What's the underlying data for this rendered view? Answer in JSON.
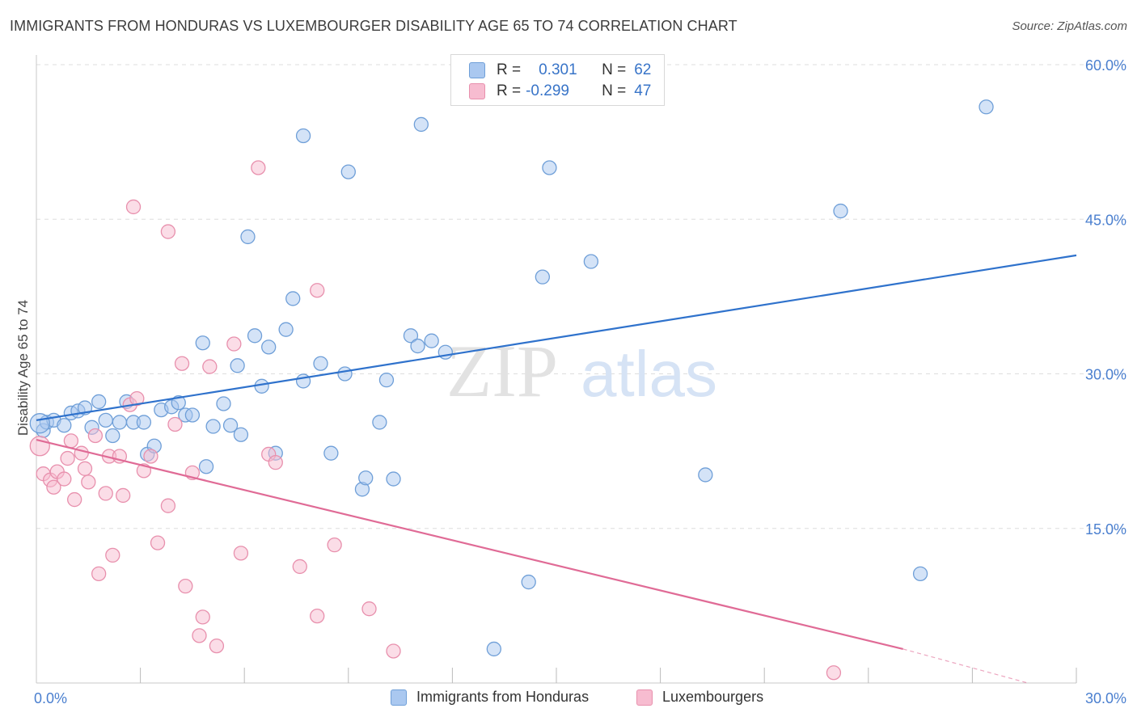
{
  "title": "IMMIGRANTS FROM HONDURAS VS LUXEMBOURGER DISABILITY AGE 65 TO 74 CORRELATION CHART",
  "source": "Source: ZipAtlas.com",
  "watermark": {
    "zip": "ZIP",
    "atlas": "atlas"
  },
  "legend_top": [
    {
      "r_label": "R =",
      "r_value": "0.301",
      "n_label": "N =",
      "n_value": "62"
    },
    {
      "r_label": "R =",
      "r_value": "-0.299",
      "n_label": "N =",
      "n_value": "47"
    }
  ],
  "legend_bottom": [
    "Immigrants from Honduras",
    "Luxembourgers"
  ],
  "colors": {
    "blue_fill": "#aac8f0",
    "blue_stroke": "#6f9fd8",
    "blue_line": "#2f72cc",
    "pink_fill": "#f7bcd0",
    "pink_stroke": "#e890ad",
    "pink_line": "#e06b96",
    "tick": "#4a7fcf",
    "grid": "#dddddd"
  },
  "chart_data": {
    "type": "scatter",
    "title": "IMMIGRANTS FROM HONDURAS VS LUXEMBOURGER DISABILITY AGE 65 TO 74 CORRELATION CHART",
    "xlabel": "",
    "ylabel": "Disability Age 65 to 74",
    "xlim": [
      0,
      30
    ],
    "ylim": [
      0,
      60
    ],
    "x_ticks": [
      "0.0%",
      "30.0%"
    ],
    "y_ticks": [
      "15.0%",
      "30.0%",
      "45.0%",
      "60.0%"
    ],
    "y_tick_values": [
      15,
      30,
      45,
      60
    ],
    "grid": true,
    "legend": "top-center",
    "series": [
      {
        "name": "Immigrants from Honduras",
        "points": [
          [
            0.2,
            24.5
          ],
          [
            0.3,
            25.3
          ],
          [
            0.5,
            25.5
          ],
          [
            0.8,
            25.0
          ],
          [
            1.0,
            26.2
          ],
          [
            1.2,
            26.4
          ],
          [
            1.4,
            26.7
          ],
          [
            1.6,
            24.8
          ],
          [
            1.8,
            27.3
          ],
          [
            2.0,
            25.5
          ],
          [
            2.2,
            24.0
          ],
          [
            2.4,
            25.3
          ],
          [
            2.6,
            27.3
          ],
          [
            2.8,
            25.3
          ],
          [
            3.1,
            25.3
          ],
          [
            3.2,
            22.2
          ],
          [
            3.4,
            23.0
          ],
          [
            3.6,
            26.5
          ],
          [
            3.9,
            26.8
          ],
          [
            4.1,
            27.2
          ],
          [
            4.3,
            26.0
          ],
          [
            4.5,
            26.0
          ],
          [
            4.8,
            33.0
          ],
          [
            4.9,
            21.0
          ],
          [
            5.1,
            24.9
          ],
          [
            5.4,
            27.1
          ],
          [
            5.6,
            25.0
          ],
          [
            5.8,
            30.8
          ],
          [
            5.9,
            24.1
          ],
          [
            6.1,
            43.3
          ],
          [
            6.3,
            33.7
          ],
          [
            6.5,
            28.8
          ],
          [
            6.7,
            32.6
          ],
          [
            6.9,
            22.3
          ],
          [
            7.2,
            34.3
          ],
          [
            7.4,
            37.3
          ],
          [
            7.7,
            29.3
          ],
          [
            7.7,
            53.1
          ],
          [
            8.2,
            31.0
          ],
          [
            8.5,
            22.3
          ],
          [
            8.9,
            30.0
          ],
          [
            9.0,
            49.6
          ],
          [
            9.4,
            18.8
          ],
          [
            9.5,
            19.9
          ],
          [
            9.9,
            25.3
          ],
          [
            10.1,
            29.4
          ],
          [
            10.3,
            19.8
          ],
          [
            10.8,
            33.7
          ],
          [
            11.0,
            32.7
          ],
          [
            11.1,
            54.2
          ],
          [
            11.4,
            33.2
          ],
          [
            11.8,
            32.1
          ],
          [
            13.2,
            3.3
          ],
          [
            14.2,
            9.8
          ],
          [
            14.6,
            39.4
          ],
          [
            14.8,
            50.0
          ],
          [
            16.0,
            40.9
          ],
          [
            19.3,
            20.2
          ],
          [
            23.2,
            45.8
          ],
          [
            25.5,
            10.6
          ],
          [
            27.4,
            55.9
          ],
          [
            0.1,
            25.2
          ]
        ]
      },
      {
        "name": "Luxembourgers",
        "points": [
          [
            0.1,
            23.0
          ],
          [
            0.2,
            20.3
          ],
          [
            0.4,
            19.7
          ],
          [
            0.5,
            19.0
          ],
          [
            0.6,
            20.5
          ],
          [
            0.8,
            19.8
          ],
          [
            0.9,
            21.8
          ],
          [
            1.0,
            23.5
          ],
          [
            1.1,
            17.8
          ],
          [
            1.3,
            22.3
          ],
          [
            1.4,
            20.8
          ],
          [
            1.5,
            19.5
          ],
          [
            1.7,
            24.0
          ],
          [
            1.8,
            10.6
          ],
          [
            2.0,
            18.4
          ],
          [
            2.1,
            22.0
          ],
          [
            2.2,
            12.4
          ],
          [
            2.4,
            22.0
          ],
          [
            2.5,
            18.2
          ],
          [
            2.7,
            27.0
          ],
          [
            2.9,
            27.6
          ],
          [
            3.1,
            20.6
          ],
          [
            3.3,
            22.0
          ],
          [
            3.5,
            13.6
          ],
          [
            3.8,
            17.2
          ],
          [
            3.8,
            43.8
          ],
          [
            4.0,
            25.1
          ],
          [
            4.2,
            31.0
          ],
          [
            4.3,
            9.4
          ],
          [
            4.5,
            20.4
          ],
          [
            4.7,
            4.6
          ],
          [
            4.8,
            6.4
          ],
          [
            5.0,
            30.7
          ],
          [
            5.2,
            3.6
          ],
          [
            5.7,
            32.9
          ],
          [
            5.9,
            12.6
          ],
          [
            6.4,
            50.0
          ],
          [
            6.7,
            22.2
          ],
          [
            6.9,
            21.4
          ],
          [
            7.6,
            11.3
          ],
          [
            8.1,
            38.1
          ],
          [
            8.1,
            6.5
          ],
          [
            8.6,
            13.4
          ],
          [
            9.6,
            7.2
          ],
          [
            10.3,
            3.1
          ],
          [
            23.0,
            1.0
          ],
          [
            2.8,
            46.2
          ]
        ]
      }
    ],
    "trend_lines": [
      {
        "series": "Immigrants from Honduras",
        "x": [
          0,
          30
        ],
        "y": [
          25.5,
          41.5
        ]
      },
      {
        "series": "Luxembourgers",
        "x": [
          0,
          25.0
        ],
        "y": [
          23.6,
          3.3
        ],
        "dashed_to": [
          28.6,
          0
        ]
      }
    ]
  }
}
